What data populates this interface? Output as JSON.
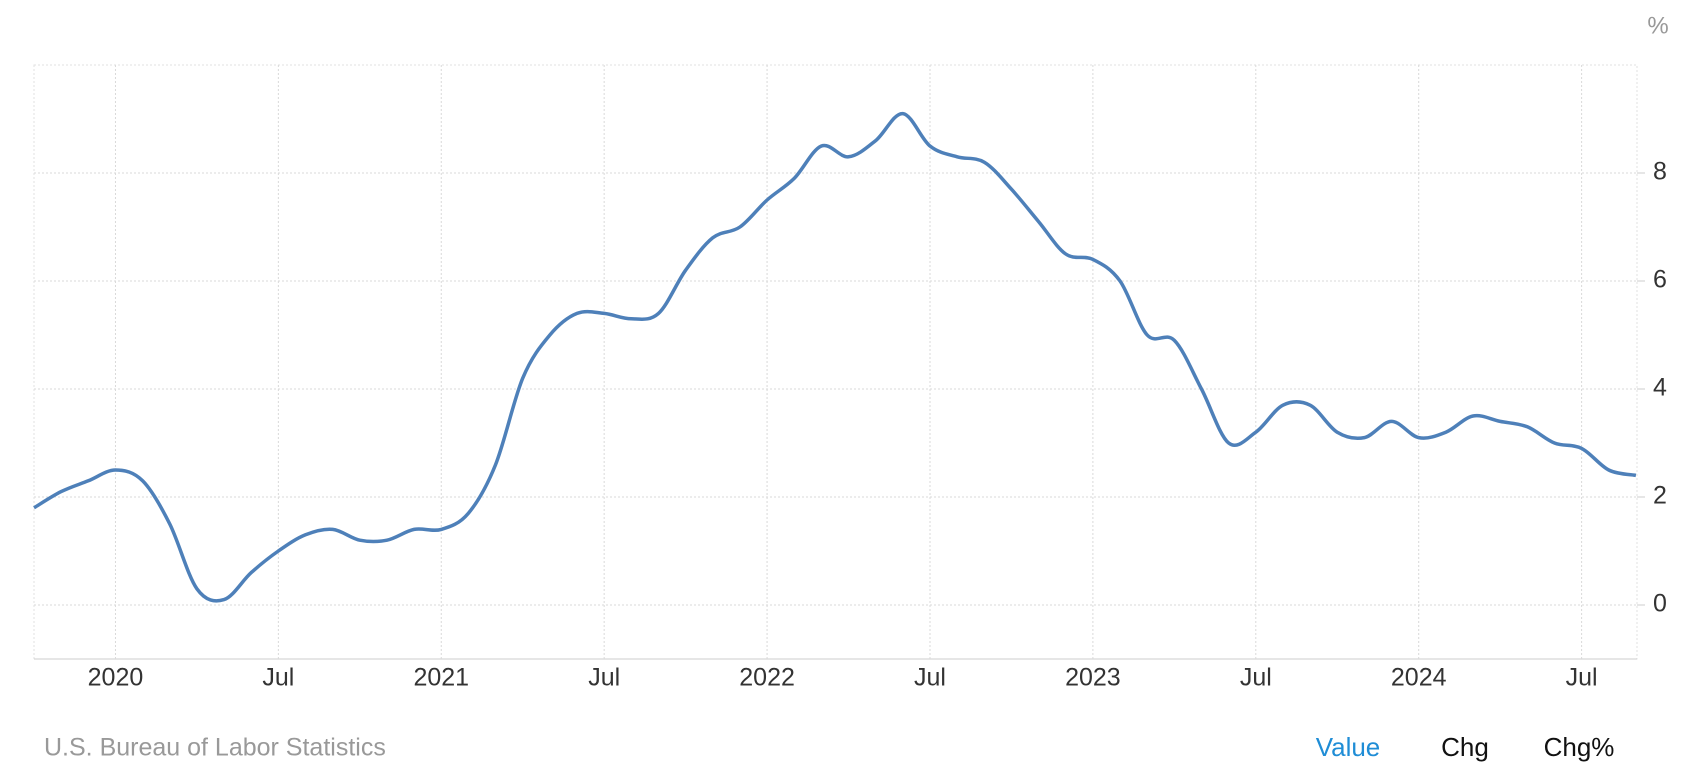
{
  "chart_data": {
    "type": "line",
    "y_unit_label": "%",
    "source": "U.S. Bureau of Labor Statistics",
    "x": [
      2019.75,
      2019.8333,
      2019.9167,
      2020,
      2020.0833,
      2020.1667,
      2020.25,
      2020.3333,
      2020.4167,
      2020.5,
      2020.5833,
      2020.6667,
      2020.75,
      2020.8333,
      2020.9167,
      2021,
      2021.0833,
      2021.1667,
      2021.25,
      2021.3333,
      2021.4167,
      2021.5,
      2021.5833,
      2021.6667,
      2021.75,
      2021.8333,
      2021.9167,
      2022,
      2022.0833,
      2022.1667,
      2022.25,
      2022.3333,
      2022.4167,
      2022.5,
      2022.5833,
      2022.6667,
      2022.75,
      2022.8333,
      2022.9167,
      2023,
      2023.0833,
      2023.1667,
      2023.25,
      2023.3333,
      2023.4167,
      2023.5,
      2023.5833,
      2023.6667,
      2023.75,
      2023.8333,
      2023.9167,
      2024,
      2024.0833,
      2024.1667,
      2024.25,
      2024.3333,
      2024.4167,
      2024.5,
      2024.5833,
      2024.6667
    ],
    "values": [
      1.8,
      2.1,
      2.3,
      2.5,
      2.3,
      1.5,
      0.3,
      0.1,
      0.6,
      1.0,
      1.3,
      1.4,
      1.2,
      1.2,
      1.4,
      1.4,
      1.7,
      2.6,
      4.2,
      5.0,
      5.4,
      5.4,
      5.3,
      5.4,
      6.2,
      6.8,
      7.0,
      7.5,
      7.9,
      8.5,
      8.3,
      8.6,
      9.1,
      8.5,
      8.3,
      8.2,
      7.7,
      7.1,
      6.5,
      6.4,
      6.0,
      5.0,
      4.9,
      4.0,
      3.0,
      3.2,
      3.7,
      3.7,
      3.2,
      3.1,
      3.4,
      3.1,
      3.2,
      3.5,
      3.4,
      3.3,
      3.0,
      2.9,
      2.5,
      2.4
    ],
    "color": "#4e80b9",
    "xlim": [
      2019.75,
      2024.67
    ],
    "xticks": [
      2020,
      {
        "value": 2020.5,
        "label": "Jul"
      },
      2021,
      {
        "value": 2021.5,
        "label": "Jul"
      },
      2022,
      {
        "value": 2022.5,
        "label": "Jul"
      },
      2023,
      {
        "value": 2023.5,
        "label": "Jul"
      },
      2024,
      {
        "value": 2024.5,
        "label": "Jul"
      }
    ],
    "ylim": [
      -1,
      10
    ],
    "yticks": [
      0,
      2,
      4,
      6,
      8
    ],
    "grid": true,
    "buttons": [
      "Value",
      "Chg",
      "Chg%"
    ],
    "active_button": 0
  }
}
